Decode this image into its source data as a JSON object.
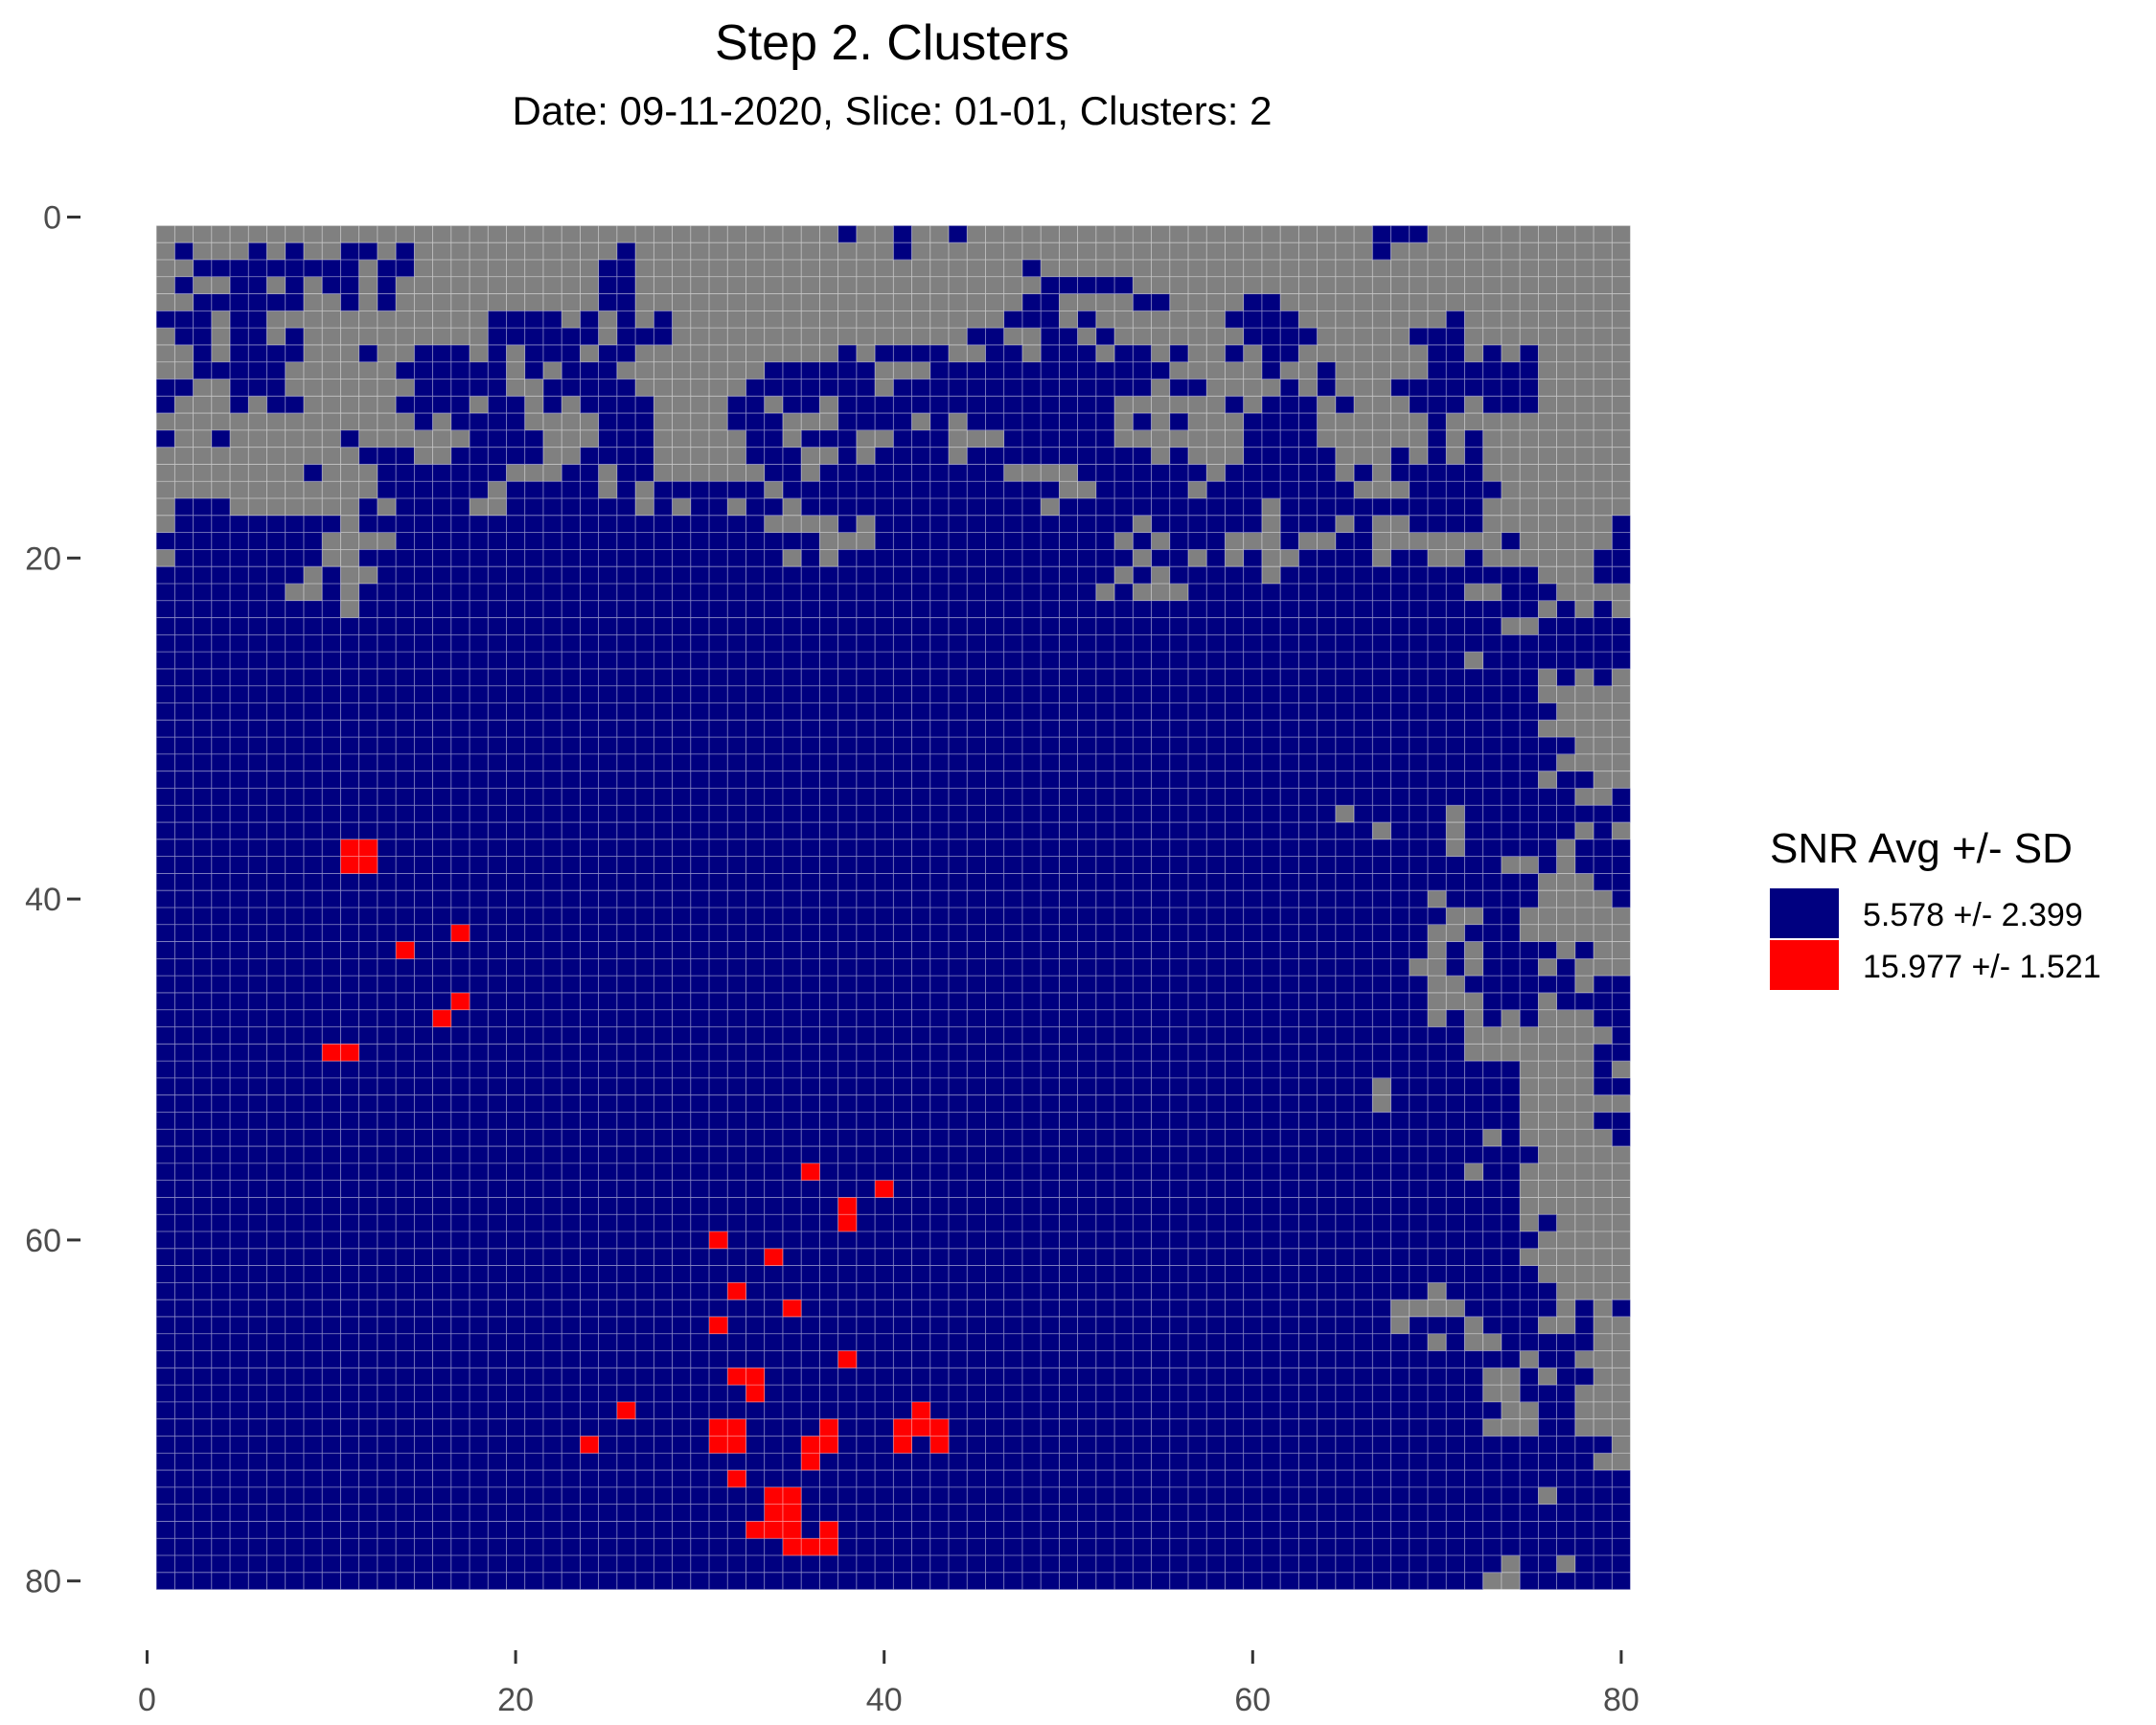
{
  "chart_data": {
    "type": "heatmap",
    "title": "Step 2. Clusters",
    "subtitle": "Date: 09-11-2020, Slice: 01-01, Clusters: 2",
    "xlabel": "",
    "ylabel": "",
    "xlim": [
      0,
      80
    ],
    "ylim": [
      0,
      80
    ],
    "y_reversed": true,
    "x_ticks": [
      0,
      20,
      40,
      60,
      80
    ],
    "y_ticks": [
      0,
      20,
      40,
      60,
      80
    ],
    "grid_range": {
      "x": [
        1,
        80
      ],
      "y": [
        1,
        80
      ]
    },
    "background_color": "#808080",
    "legend": {
      "title": "SNR Avg +/- SD",
      "placement": "right",
      "entries": [
        {
          "label": "5.578 +/- 2.399",
          "color": "#000080"
        },
        {
          "label": "15.977 +/- 1.521",
          "color": "#ff0000"
        }
      ]
    },
    "clusters": [
      {
        "label": "5.578 +/- 2.399",
        "color": "#000080",
        "cells": "all pixels not gray (gray = no cluster)"
      },
      {
        "label": "15.977 +/- 1.521",
        "color": "#ff0000",
        "cells": [
          [
            11,
            37
          ],
          [
            12,
            37
          ],
          [
            11,
            38
          ],
          [
            12,
            38
          ],
          [
            17,
            42
          ],
          [
            14,
            43
          ],
          [
            17,
            46
          ],
          [
            16,
            47
          ],
          [
            10,
            49
          ],
          [
            11,
            49
          ],
          [
            36,
            56
          ],
          [
            40,
            57
          ],
          [
            38,
            58
          ],
          [
            38,
            59
          ],
          [
            31,
            60
          ],
          [
            34,
            61
          ],
          [
            32,
            63
          ],
          [
            35,
            64
          ],
          [
            31,
            65
          ],
          [
            38,
            67
          ],
          [
            32,
            68
          ],
          [
            33,
            68
          ],
          [
            33,
            69
          ],
          [
            26,
            70
          ],
          [
            42,
            70
          ],
          [
            31,
            71
          ],
          [
            32,
            71
          ],
          [
            37,
            71
          ],
          [
            41,
            71
          ],
          [
            42,
            71
          ],
          [
            43,
            71
          ],
          [
            24,
            72
          ],
          [
            31,
            72
          ],
          [
            32,
            72
          ],
          [
            36,
            72
          ],
          [
            37,
            72
          ],
          [
            41,
            72
          ],
          [
            43,
            72
          ],
          [
            36,
            73
          ],
          [
            32,
            74
          ],
          [
            34,
            75
          ],
          [
            35,
            75
          ],
          [
            34,
            76
          ],
          [
            35,
            76
          ],
          [
            33,
            77
          ],
          [
            34,
            77
          ],
          [
            35,
            77
          ],
          [
            37,
            77
          ],
          [
            35,
            78
          ],
          [
            36,
            78
          ],
          [
            37,
            78
          ]
        ]
      }
    ]
  }
}
